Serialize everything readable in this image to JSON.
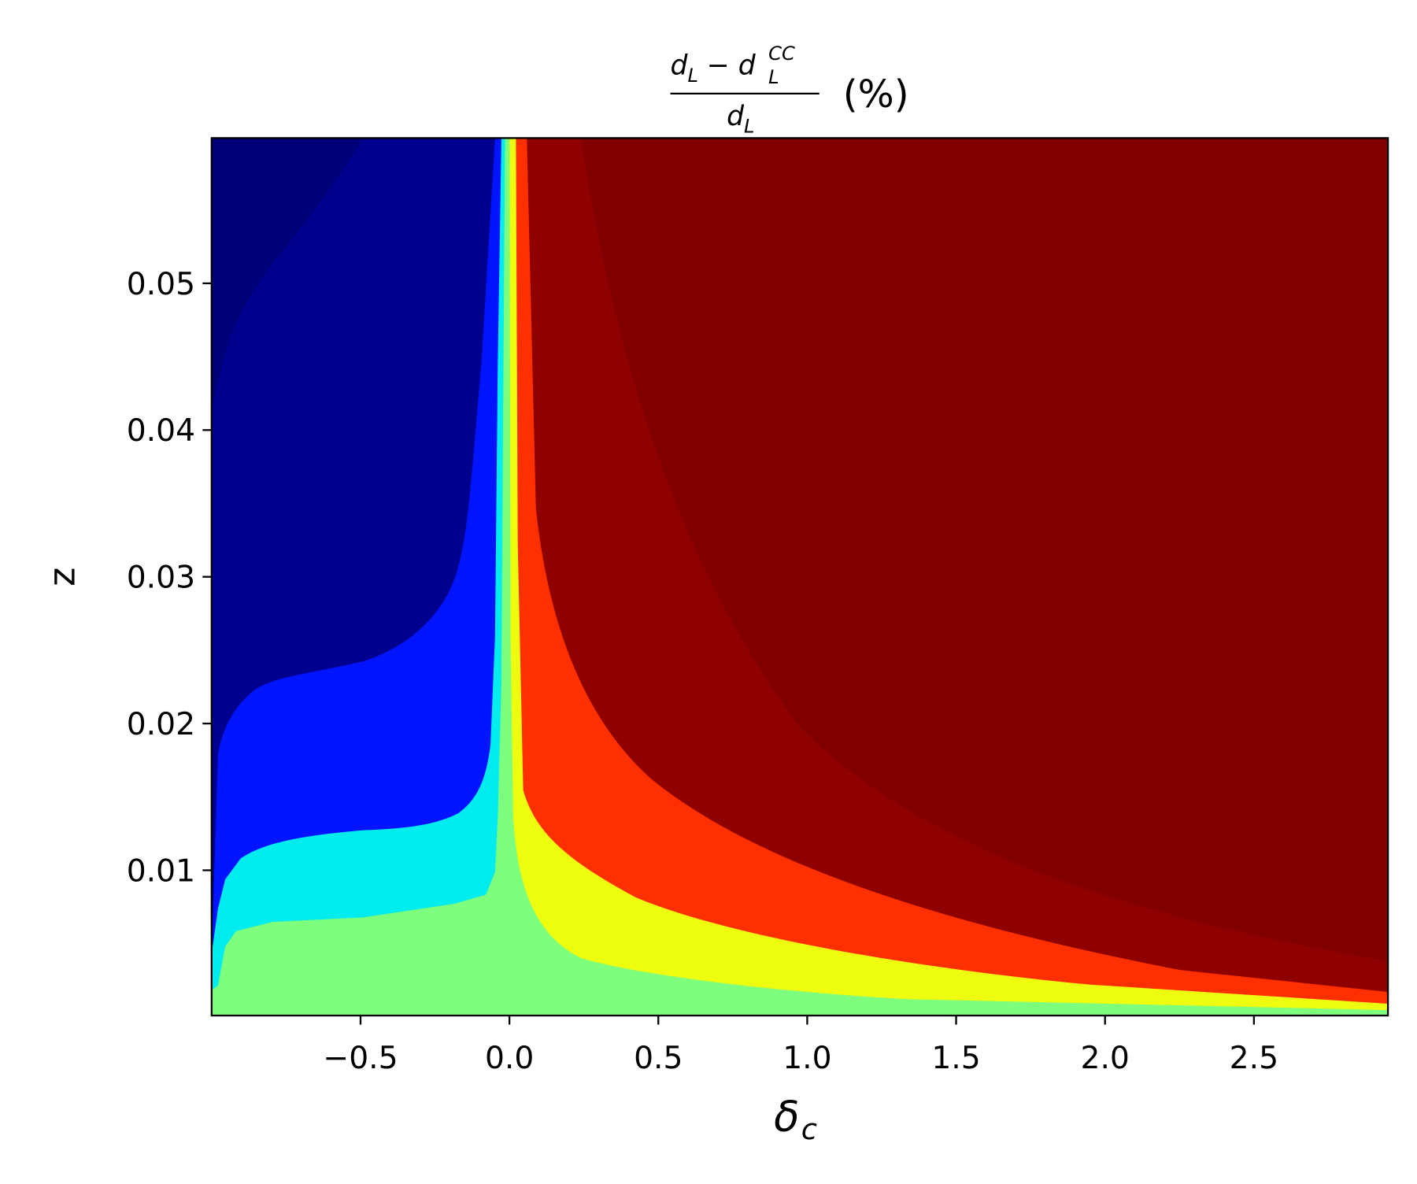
{
  "chart_data": {
    "type": "contour",
    "title": {
      "numerator": [
        "d",
        "L",
        "− d",
        "L",
        "CC"
      ],
      "denominator": [
        "d",
        "L"
      ],
      "suffix": "(%)"
    },
    "x_label": [
      "δ",
      "c"
    ],
    "y_label": "z",
    "xlim": [
      -1.0,
      2.95
    ],
    "ylim": [
      0.0001,
      0.0599
    ],
    "xticks": [
      {
        "value": -0.5,
        "label": "−0.5"
      },
      {
        "value": 0,
        "label": "0.0"
      },
      0.5,
      {
        "value": 1,
        "label": "1.0"
      },
      1.5,
      {
        "value": 2,
        "label": "2.0"
      },
      2.5
    ],
    "yticks": [
      0.01,
      0.02,
      0.03,
      0.04,
      0.05
    ],
    "grid": false
  }
}
